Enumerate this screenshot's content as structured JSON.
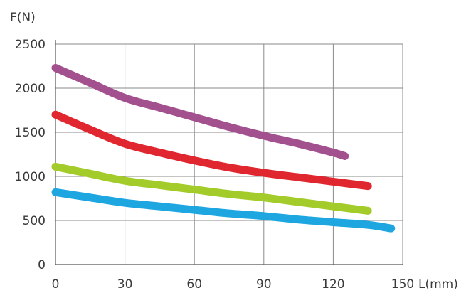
{
  "chart_data": {
    "type": "line",
    "title": "",
    "xlabel": "L(mm)",
    "ylabel": "F(N)",
    "xlim": [
      0,
      150
    ],
    "ylim": [
      0,
      2500
    ],
    "x_ticks": [
      0,
      30,
      60,
      90,
      120,
      150
    ],
    "y_ticks": [
      0,
      500,
      1000,
      1500,
      2000,
      2500
    ],
    "grid": true,
    "legend": "none",
    "series": [
      {
        "color": "#a3508f",
        "x": [
          0,
          15,
          30,
          45,
          60,
          75,
          90,
          105,
          120,
          125
        ],
        "y": [
          2230,
          2060,
          1890,
          1780,
          1670,
          1560,
          1460,
          1370,
          1270,
          1230
        ]
      },
      {
        "color": "#e0262e",
        "x": [
          0,
          15,
          30,
          45,
          60,
          75,
          90,
          105,
          120,
          135
        ],
        "y": [
          1700,
          1530,
          1370,
          1270,
          1180,
          1100,
          1040,
          990,
          940,
          890
        ]
      },
      {
        "color": "#a3cc2a",
        "x": [
          0,
          15,
          30,
          45,
          60,
          75,
          90,
          105,
          120,
          135
        ],
        "y": [
          1110,
          1030,
          950,
          900,
          850,
          800,
          760,
          710,
          660,
          610
        ]
      },
      {
        "color": "#1ea6e0",
        "x": [
          0,
          15,
          30,
          45,
          60,
          75,
          90,
          105,
          120,
          135,
          145
        ],
        "y": [
          820,
          760,
          700,
          660,
          620,
          580,
          550,
          510,
          480,
          450,
          410
        ]
      }
    ]
  }
}
